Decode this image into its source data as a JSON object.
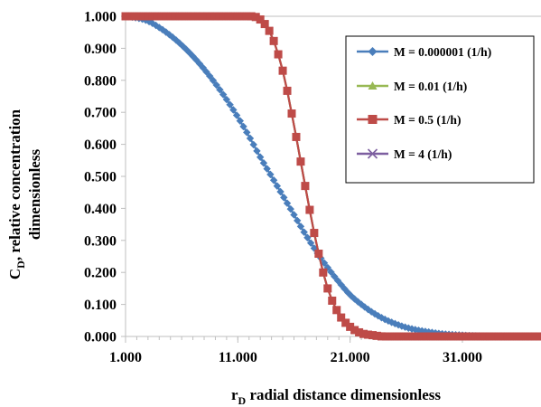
{
  "chart_data": {
    "type": "line",
    "title": "",
    "xlabel_main": "r",
    "xlabel_sub": "D",
    "xlabel_rest": " radial distance dimensionless",
    "ylabel_main": "C",
    "ylabel_sub": "D",
    "ylabel_rest": ", relative concentration",
    "ylabel_line2": "dimensionless",
    "xlim": [
      1,
      38
    ],
    "ylim": [
      0,
      1
    ],
    "x_ticks": [
      1,
      11,
      21,
      31
    ],
    "x_tick_labels": [
      "1.000",
      "11.000",
      "21.000",
      "31.000"
    ],
    "y_ticks": [
      0,
      0.1,
      0.2,
      0.3,
      0.4,
      0.5,
      0.6,
      0.7,
      0.8,
      0.9,
      1.0
    ],
    "y_tick_labels": [
      "0.000",
      "0.100",
      "0.200",
      "0.300",
      "0.400",
      "0.500",
      "0.600",
      "0.700",
      "0.800",
      "0.900",
      "1.000"
    ],
    "gridlines": "horizontal at 1.000 only",
    "legend_position": "top-right",
    "series": [
      {
        "name": "M = 0.000001 (1/h)",
        "color": "#4a7ebb",
        "marker": "diamond",
        "x": [
          1,
          2,
          3,
          4,
          5,
          6,
          7,
          8,
          9,
          10,
          11,
          12,
          13,
          14,
          15,
          16,
          17,
          18,
          19,
          20,
          21,
          22,
          23,
          24,
          25,
          26,
          27,
          28,
          29,
          30,
          31,
          32,
          33,
          34,
          35,
          36,
          37,
          38
        ],
        "y": [
          1.0,
          0.995,
          0.985,
          0.965,
          0.94,
          0.91,
          0.875,
          0.835,
          0.79,
          0.74,
          0.685,
          0.625,
          0.56,
          0.5,
          0.44,
          0.38,
          0.32,
          0.265,
          0.215,
          0.17,
          0.13,
          0.1,
          0.075,
          0.055,
          0.04,
          0.028,
          0.02,
          0.014,
          0.009,
          0.006,
          0.004,
          0.002,
          0.001,
          0.0,
          0.0,
          0.0,
          0.0,
          0.0
        ]
      },
      {
        "name": "M = 0.01 (1/h)",
        "color": "#98b954",
        "marker": "triangle",
        "x": [
          1,
          2,
          3,
          4,
          5,
          6,
          7,
          8,
          9,
          10,
          11,
          12,
          13,
          14,
          15,
          16,
          17,
          18,
          19,
          20,
          21,
          22,
          23,
          24,
          25,
          26,
          27,
          28,
          29,
          30,
          31,
          32,
          33,
          34,
          35,
          36,
          37,
          38
        ],
        "y": [
          1.0,
          1.0,
          1.0,
          1.0,
          1.0,
          1.0,
          1.0,
          1.0,
          1.0,
          1.0,
          1.0,
          1.0,
          0.99,
          0.94,
          0.83,
          0.66,
          0.47,
          0.29,
          0.15,
          0.07,
          0.03,
          0.01,
          0.004,
          0.0,
          0.0,
          0.0,
          0.0,
          0.0,
          0.0,
          0.0,
          0.0,
          0.0,
          0.0,
          0.0,
          0.0,
          0.0,
          0.0,
          0.0
        ]
      },
      {
        "name": "M = 0.5 (1/h)",
        "color": "#be4b48",
        "marker": "square",
        "x": [
          1,
          2,
          3,
          4,
          5,
          6,
          7,
          8,
          9,
          10,
          11,
          12,
          13,
          14,
          15,
          16,
          17,
          18,
          19,
          20,
          21,
          22,
          23,
          24,
          25,
          26,
          27,
          28,
          29,
          30,
          31,
          32,
          33,
          34,
          35,
          36,
          37,
          38
        ],
        "y": [
          1.0,
          1.0,
          1.0,
          1.0,
          1.0,
          1.0,
          1.0,
          1.0,
          1.0,
          1.0,
          1.0,
          1.0,
          0.99,
          0.94,
          0.83,
          0.66,
          0.47,
          0.29,
          0.15,
          0.07,
          0.03,
          0.01,
          0.004,
          0.0,
          0.0,
          0.0,
          0.0,
          0.0,
          0.0,
          0.0,
          0.0,
          0.0,
          0.0,
          0.0,
          0.0,
          0.0,
          0.0,
          0.0
        ]
      },
      {
        "name": "M = 4 (1/h)",
        "color": "#7d5fa0",
        "marker": "x",
        "x": [
          1,
          2,
          3,
          4,
          5,
          6,
          7,
          8,
          9,
          10,
          11,
          12,
          13,
          14,
          15,
          16,
          17,
          18,
          19,
          20,
          21,
          22,
          23,
          24,
          25,
          26,
          27,
          28,
          29,
          30,
          31,
          32,
          33,
          34,
          35,
          36,
          37,
          38
        ],
        "y": [
          1.0,
          1.0,
          1.0,
          1.0,
          1.0,
          1.0,
          1.0,
          1.0,
          1.0,
          1.0,
          1.0,
          1.0,
          0.99,
          0.94,
          0.83,
          0.66,
          0.47,
          0.29,
          0.15,
          0.07,
          0.03,
          0.01,
          0.004,
          0.0,
          0.0,
          0.0,
          0.0,
          0.0,
          0.0,
          0.0,
          0.0,
          0.0,
          0.0,
          0.0,
          0.0,
          0.0,
          0.0,
          0.0
        ]
      }
    ]
  }
}
